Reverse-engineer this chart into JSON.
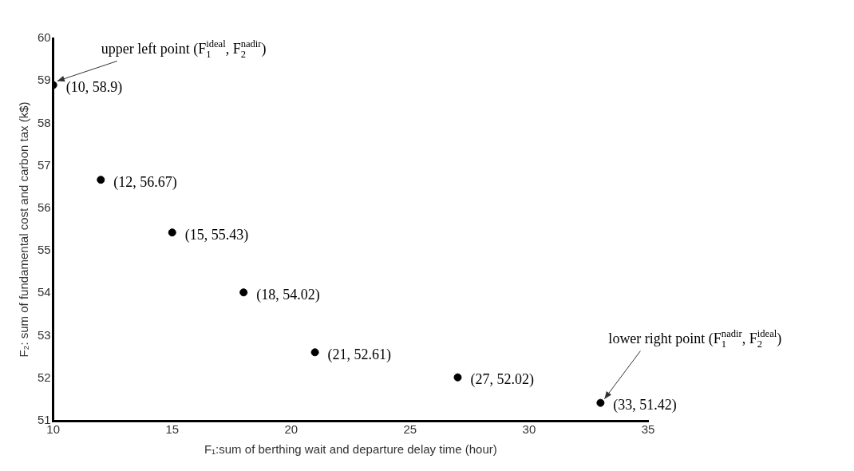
{
  "chart_data": {
    "type": "scatter",
    "xlabel": "F₁:sum of berthing wait and departure delay time (hour)",
    "ylabel": "F₂: sum of fundamental cost and carbon tax (k$)",
    "x": [
      10,
      12,
      15,
      18,
      21,
      27,
      33
    ],
    "values": [
      58.9,
      56.67,
      55.43,
      54.02,
      52.61,
      52.02,
      51.42
    ],
    "value_labels": [
      "(10, 58.9)",
      "(12, 56.67)",
      "(15, 55.43)",
      "(18, 54.02)",
      "(21, 52.61)",
      "(27, 52.02)",
      "(33, 51.42)"
    ],
    "color": "#000000",
    "marker": "circle",
    "xlim": [
      10,
      35
    ],
    "xticks": [
      10,
      15,
      20,
      25,
      30,
      35
    ],
    "ylim": [
      51,
      60
    ],
    "yticks": [
      51,
      52,
      53,
      54,
      55,
      56,
      57,
      58,
      59,
      60
    ],
    "grid": false,
    "legend": false,
    "annotations": [
      {
        "text": "upper left point (F$_{1}$$^{ideal}$, F$_{2}$$^{nadir}$)",
        "x": 10,
        "y": 58.9
      },
      {
        "text": "lower right point (F$_{1}$$^{nadir}$, F$_{2}$$^{ideal}$)",
        "x": 33,
        "y": 51.42
      }
    ]
  }
}
